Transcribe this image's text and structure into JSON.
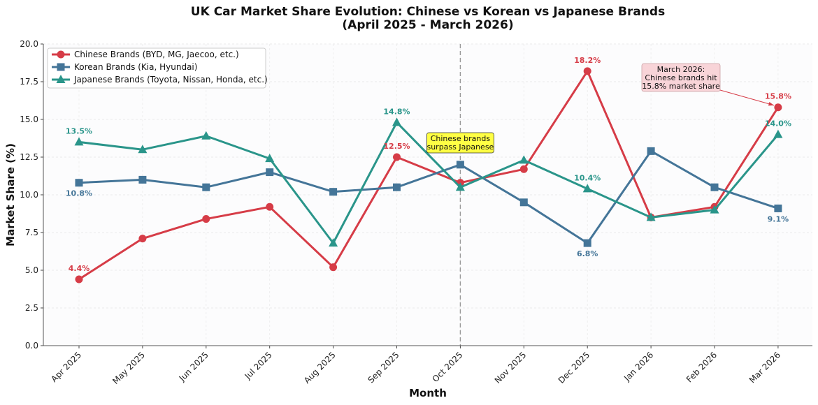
{
  "chart_data": {
    "type": "line",
    "title": "UK Car Market Share Evolution: Chinese vs Korean vs Japanese Brands",
    "subtitle": "(April 2025 - March 2026)",
    "xlabel": "Month",
    "ylabel": "Market Share (%)",
    "ylim": [
      0,
      20
    ],
    "yticks": [
      "0.0",
      "2.5",
      "5.0",
      "7.5",
      "10.0",
      "12.5",
      "15.0",
      "17.5",
      "20.0"
    ],
    "categories": [
      "Apr 2025",
      "May 2025",
      "Jun 2025",
      "Jul 2025",
      "Aug 2025",
      "Sep 2025",
      "Oct 2025",
      "Nov 2025",
      "Dec 2025",
      "Jan 2026",
      "Feb 2026",
      "Mar 2026"
    ],
    "grid": true,
    "legend_position": "top-left",
    "series": [
      {
        "name": "Chinese Brands (BYD, MG, Jaecoo, etc.)",
        "color": "#d63c47",
        "marker": "circle",
        "fill_under": true,
        "fill_color": "#f9dde2",
        "values": [
          4.4,
          7.1,
          8.4,
          9.2,
          5.2,
          12.5,
          10.8,
          11.7,
          18.2,
          8.5,
          9.2,
          15.8
        ]
      },
      {
        "name": "Korean Brands (Kia, Hyundai)",
        "color": "#447598",
        "marker": "square",
        "values": [
          10.8,
          11.0,
          10.5,
          11.5,
          10.2,
          10.5,
          12.0,
          9.5,
          6.8,
          12.9,
          10.5,
          9.1
        ]
      },
      {
        "name": "Japanese Brands (Toyota, Nissan, Honda, etc.)",
        "color": "#2a958a",
        "marker": "triangle",
        "values": [
          13.5,
          13.0,
          13.9,
          12.4,
          6.8,
          14.8,
          10.5,
          12.3,
          10.4,
          8.5,
          9.0,
          14.0
        ]
      }
    ],
    "data_labels": [
      {
        "series": 0,
        "index": 0,
        "text": "4.4%",
        "position": "above"
      },
      {
        "series": 0,
        "index": 5,
        "text": "12.5%",
        "position": "above"
      },
      {
        "series": 0,
        "index": 8,
        "text": "18.2%",
        "position": "above"
      },
      {
        "series": 0,
        "index": 11,
        "text": "15.8%",
        "position": "above"
      },
      {
        "series": 1,
        "index": 0,
        "text": "10.8%",
        "position": "below"
      },
      {
        "series": 1,
        "index": 8,
        "text": "6.8%",
        "position": "below"
      },
      {
        "series": 1,
        "index": 11,
        "text": "9.1%",
        "position": "below"
      },
      {
        "series": 2,
        "index": 0,
        "text": "13.5%",
        "position": "above"
      },
      {
        "series": 2,
        "index": 5,
        "text": "14.8%",
        "position": "above"
      },
      {
        "series": 2,
        "index": 8,
        "text": "10.4%",
        "position": "above"
      },
      {
        "series": 2,
        "index": 11,
        "text": "14.0%",
        "position": "above"
      }
    ],
    "reference_line": {
      "at_category": "Oct 2025",
      "style": "dashed",
      "color": "#999999"
    },
    "annotations": [
      {
        "lines": [
          "Chinese brands",
          "surpass Japanese"
        ],
        "bg_color": "#ffff44",
        "anchor_category": "Oct 2025"
      },
      {
        "lines": [
          "March 2026:",
          "Chinese brands hit",
          "15.8% market share"
        ],
        "bg_color": "#f8d4d8",
        "arrow_to_category": "Mar 2026",
        "arrow_to_value": 15.8
      }
    ]
  }
}
